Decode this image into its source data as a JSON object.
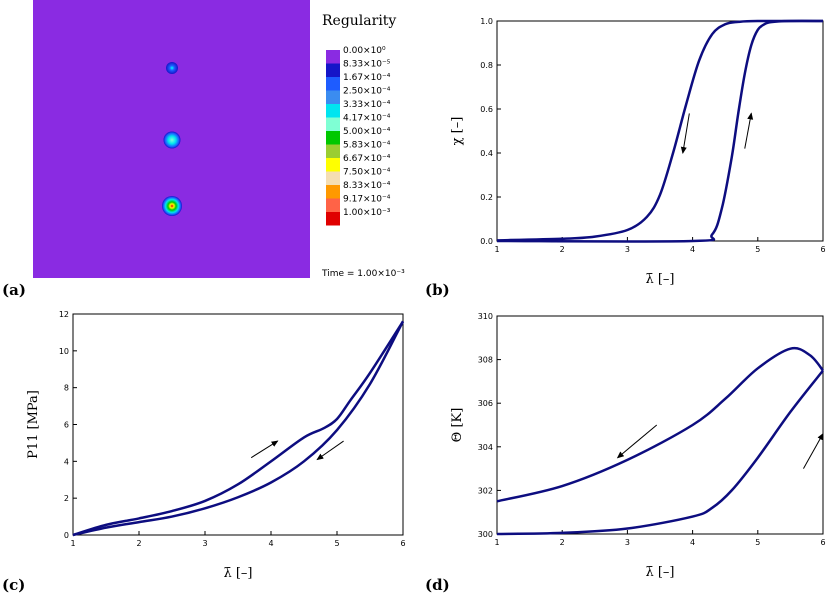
{
  "panels": {
    "a": {
      "label": "(a)",
      "colorbar_title": "Regularity",
      "time_label": "Time = 1.00×10⁻³",
      "background_color": "#8a2be2",
      "colorbar": [
        {
          "label": "0.00×10⁰",
          "color": "#8a2be2"
        },
        {
          "label": "8.33×10⁻⁵",
          "color": "#1515c8"
        },
        {
          "label": "1.67×10⁻⁴",
          "color": "#1e5cff"
        },
        {
          "label": "2.50×10⁻⁴",
          "color": "#3b8cf0"
        },
        {
          "label": "3.33×10⁻⁴",
          "color": "#00e5f0"
        },
        {
          "label": "4.17×10⁻⁴",
          "color": "#7fffd4"
        },
        {
          "label": "5.00×10⁻⁴",
          "color": "#00c800"
        },
        {
          "label": "5.83×10⁻⁴",
          "color": "#9acd32"
        },
        {
          "label": "6.67×10⁻⁴",
          "color": "#ffff00"
        },
        {
          "label": "7.50×10⁻⁴",
          "color": "#f5deb3"
        },
        {
          "label": "8.33×10⁻⁴",
          "color": "#ff9900"
        },
        {
          "label": "9.17×10⁻⁴",
          "color": "#ff6347"
        },
        {
          "label": "1.00×10⁻³",
          "color": "#e00000"
        }
      ]
    },
    "b": {
      "label": "(b)"
    },
    "c": {
      "label": "(c)"
    },
    "d": {
      "label": "(d)"
    }
  },
  "chart_data": [
    {
      "id": "b",
      "type": "line",
      "xlabel": "λ̄ [–]",
      "ylabel": "χ [–]",
      "xlim": [
        1,
        6
      ],
      "ylim": [
        0,
        1
      ],
      "xticks": [
        "1",
        "2",
        "3",
        "4",
        "5",
        "6"
      ],
      "yticks": [
        "0.0",
        "0.2",
        "0.4",
        "0.6",
        "0.8",
        "1.0"
      ],
      "line_color": "#0d0d80",
      "series": [
        {
          "x": [
            1,
            2,
            2.5,
            3,
            3.3,
            3.5,
            3.7,
            3.9,
            4.1,
            4.3,
            4.5,
            4.7,
            5,
            6
          ],
          "y": [
            0.003,
            0.01,
            0.02,
            0.05,
            0.11,
            0.21,
            0.4,
            0.62,
            0.82,
            0.94,
            0.985,
            0.996,
            1.0,
            1.0
          ]
        },
        {
          "x": [
            1,
            4,
            4.3,
            4.45,
            4.6,
            4.7,
            4.8,
            4.9,
            5,
            5.1,
            5.2,
            5.5,
            6
          ],
          "y": [
            0.0,
            0.0,
            0.03,
            0.15,
            0.38,
            0.58,
            0.76,
            0.89,
            0.96,
            0.985,
            0.995,
            1.0,
            1.0
          ]
        }
      ],
      "arrows": [
        {
          "x1": 3.95,
          "y1": 0.58,
          "x2": 3.85,
          "y2": 0.4
        },
        {
          "x1": 4.8,
          "y1": 0.42,
          "x2": 4.9,
          "y2": 0.58
        }
      ]
    },
    {
      "id": "c",
      "type": "line",
      "xlabel": "λ̄ [–]",
      "ylabel": "P11 [MPa]",
      "xlim": [
        1,
        6
      ],
      "ylim": [
        0,
        12
      ],
      "xticks": [
        "1",
        "2",
        "3",
        "4",
        "5",
        "6"
      ],
      "yticks": [
        "0",
        "2",
        "4",
        "6",
        "8",
        "10",
        "12"
      ],
      "line_color": "#0d0d80",
      "series": [
        {
          "x": [
            1,
            1.5,
            2,
            2.5,
            3,
            3.5,
            4,
            4.5,
            4.8,
            5,
            5.2,
            5.5,
            6
          ],
          "y": [
            0,
            0.55,
            0.9,
            1.3,
            1.85,
            2.75,
            4.0,
            5.3,
            5.8,
            6.3,
            7.3,
            8.8,
            11.6
          ]
        },
        {
          "x": [
            1,
            1.5,
            2,
            2.5,
            3,
            3.5,
            4,
            4.5,
            5,
            5.5,
            6
          ],
          "y": [
            0,
            0.4,
            0.7,
            1.0,
            1.45,
            2.05,
            2.85,
            4.0,
            5.7,
            8.2,
            11.6
          ]
        }
      ],
      "arrows": [
        {
          "x1": 3.7,
          "y1": 4.2,
          "x2": 4.1,
          "y2": 5.1
        },
        {
          "x1": 5.1,
          "y1": 5.1,
          "x2": 4.7,
          "y2": 4.1
        }
      ]
    },
    {
      "id": "d",
      "type": "line",
      "xlabel": "λ̄ [–]",
      "ylabel": "Θ [K]",
      "xlim": [
        1,
        6
      ],
      "ylim": [
        300,
        310
      ],
      "xticks": [
        "1",
        "2",
        "3",
        "4",
        "5",
        "6"
      ],
      "yticks": [
        "300",
        "302",
        "304",
        "306",
        "308",
        "310"
      ],
      "line_color": "#0d0d80",
      "series": [
        {
          "x": [
            1,
            2,
            3,
            4,
            4.5,
            5,
            5.5,
            5.8,
            6
          ],
          "y": [
            301.5,
            302.2,
            303.4,
            305.0,
            306.2,
            307.6,
            308.5,
            308.2,
            307.5
          ]
        },
        {
          "x": [
            1,
            2,
            3,
            4,
            4.3,
            4.6,
            5,
            5.5,
            6
          ],
          "y": [
            300.0,
            300.05,
            300.25,
            300.8,
            301.2,
            302.0,
            303.5,
            305.6,
            307.5
          ]
        }
      ],
      "arrows": [
        {
          "x1": 3.45,
          "y1": 305.0,
          "x2": 2.85,
          "y2": 303.5
        },
        {
          "x1": 5.7,
          "y1": 303.0,
          "x2": 6.0,
          "y2": 304.6
        }
      ]
    }
  ]
}
